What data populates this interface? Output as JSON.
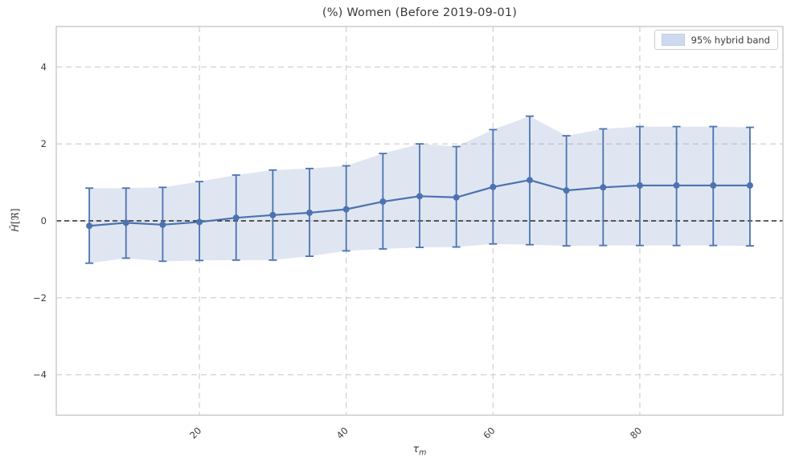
{
  "title": "(%) Women (Before 2019-09-01)",
  "legend": {
    "label": "95% hybrid band"
  },
  "axes": {
    "ylabel_h": "Ĥ",
    "ylabel_bracket": "[ℜ]",
    "xlabel_tau": "τ",
    "xlabel_sub": "m"
  },
  "colors": {
    "line": "#4c72b0",
    "band_fill": "#4c72b0",
    "band_opacity": 0.18,
    "grid": "#cccccc",
    "spine": "#c9c9c9",
    "zero_line": "#000000",
    "text": "#3c3c3c",
    "background": "#ffffff",
    "legend_swatch": "#cdd9ee"
  },
  "chart_data": {
    "type": "line",
    "title": "(%) Women (Before 2019-09-01)",
    "xlabel": "τ_m",
    "ylabel": "Ĥ[ℜ]",
    "legend_entries": [
      "95% hybrid band"
    ],
    "legend_position": "upper right",
    "grid": true,
    "grid_style": "dashed",
    "x": [
      5,
      10,
      15,
      20,
      25,
      30,
      35,
      40,
      45,
      50,
      55,
      60,
      65,
      70,
      75,
      80,
      85,
      90,
      95
    ],
    "y": [
      -0.13,
      -0.05,
      -0.1,
      -0.03,
      0.08,
      0.15,
      0.21,
      0.3,
      0.5,
      0.64,
      0.61,
      0.88,
      1.06,
      0.79,
      0.87,
      0.92,
      0.92,
      0.92,
      0.92
    ],
    "band_upper": [
      0.85,
      0.85,
      0.87,
      1.02,
      1.19,
      1.32,
      1.36,
      1.43,
      1.75,
      2.0,
      1.93,
      2.37,
      2.72,
      2.21,
      2.39,
      2.45,
      2.45,
      2.45,
      2.43
    ],
    "band_lower": [
      -1.1,
      -0.97,
      -1.05,
      -1.03,
      -1.02,
      -1.02,
      -0.92,
      -0.78,
      -0.73,
      -0.69,
      -0.68,
      -0.6,
      -0.62,
      -0.65,
      -0.64,
      -0.64,
      -0.64,
      -0.64,
      -0.65
    ],
    "error_bars": true,
    "zero_line_y": 0,
    "xticks": [
      20,
      40,
      60,
      80
    ],
    "yticks": [
      -4,
      -2,
      0,
      2,
      4
    ],
    "xtick_labels": [
      "20",
      "40",
      "60",
      "80"
    ],
    "ytick_labels": [
      "−4",
      "−2",
      "0",
      "2",
      "4"
    ],
    "xtick_rotation": 45,
    "xlim": [
      0.5,
      99.5
    ],
    "ylim": [
      -5.05,
      5.05
    ]
  }
}
